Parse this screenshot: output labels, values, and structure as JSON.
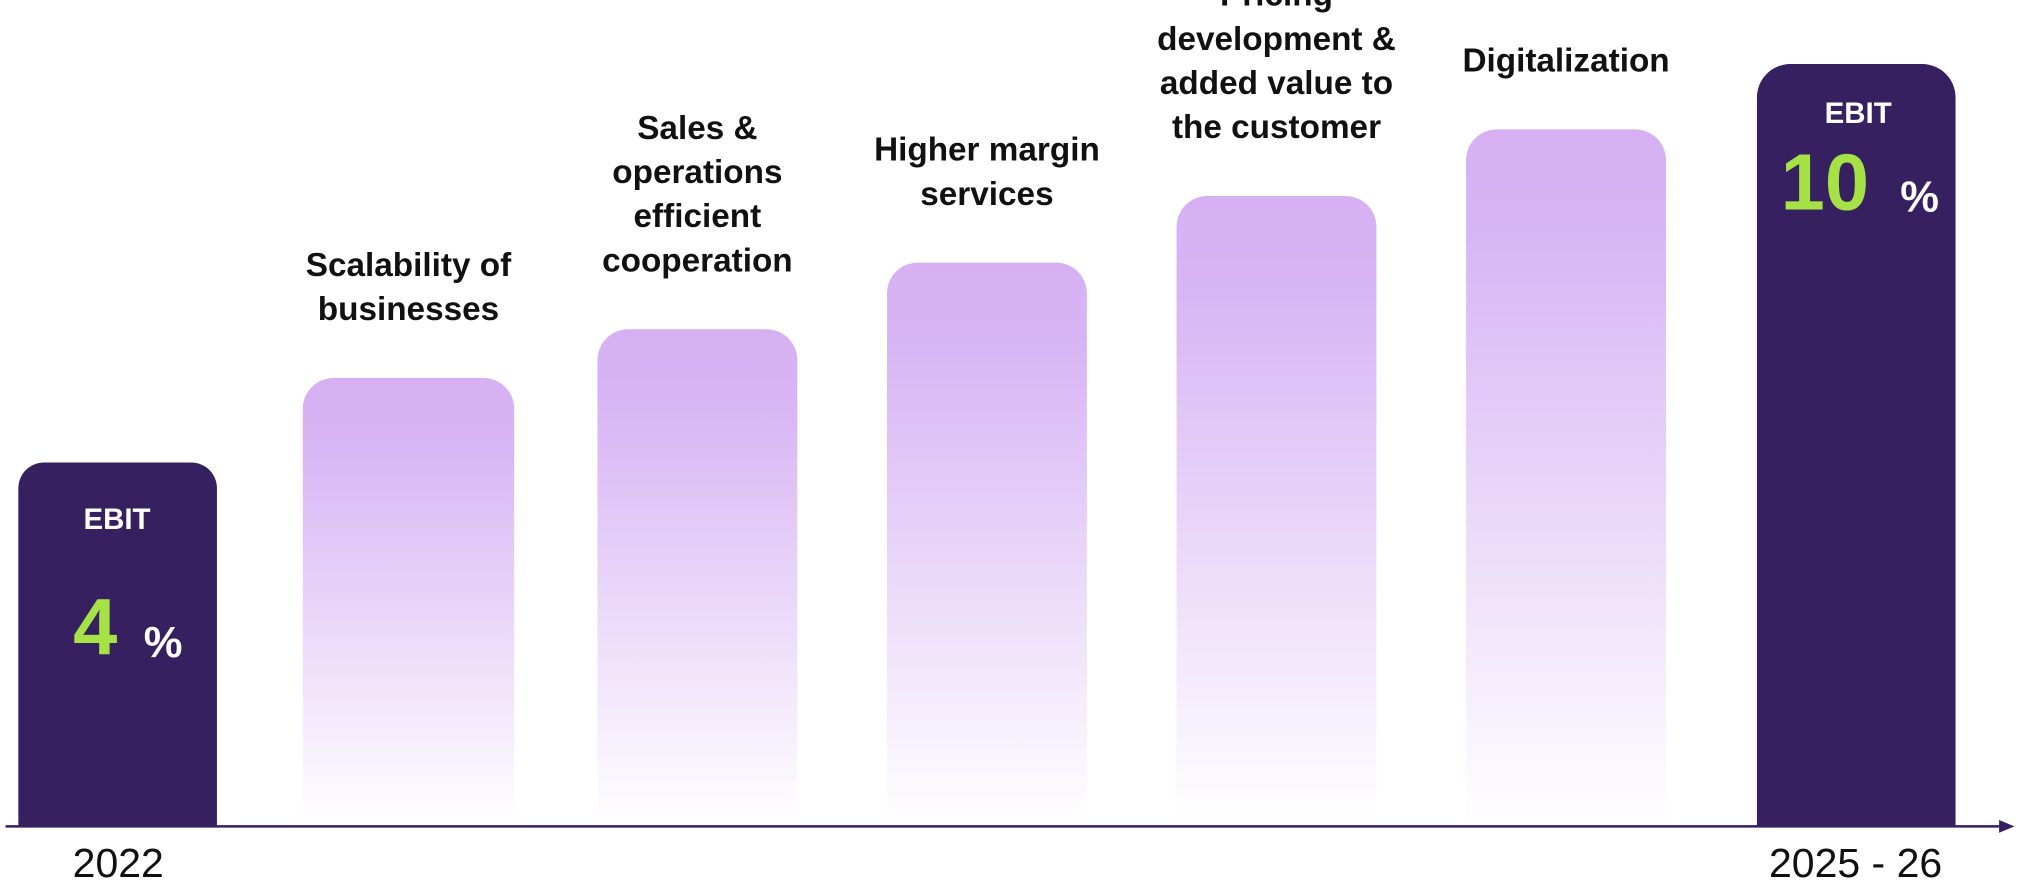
{
  "start": {
    "label": "EBIT",
    "value": "4",
    "unit": "%",
    "year": "2022"
  },
  "end": {
    "label": "EBIT",
    "value": "10",
    "unit": "%",
    "year": "2025 - 26"
  },
  "steps": [
    {
      "label": [
        "Scalability of",
        "businesses"
      ]
    },
    {
      "label": [
        "Sales &",
        "operations",
        "efficient",
        "cooperation"
      ]
    },
    {
      "label": [
        "Higher margin",
        "services"
      ]
    },
    {
      "label": [
        "Pricing",
        "development &",
        "added value to",
        "the customer"
      ]
    },
    {
      "label": [
        "Digitalization"
      ]
    }
  ]
}
